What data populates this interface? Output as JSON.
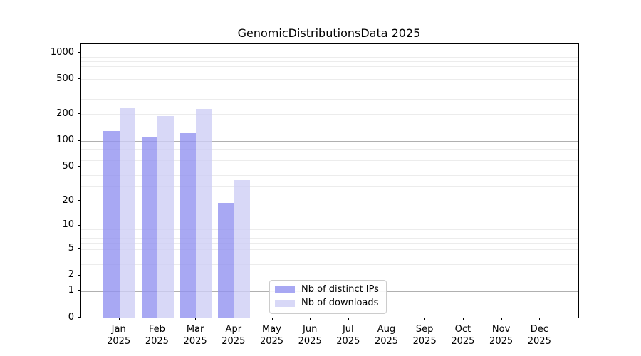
{
  "chart_data": {
    "type": "bar",
    "title": "GenomicDistributionsData 2025",
    "categories": [
      "Jan",
      "Feb",
      "Mar",
      "Apr",
      "May",
      "Jun",
      "Jul",
      "Aug",
      "Sep",
      "Oct",
      "Nov",
      "Dec"
    ],
    "year_label": "2025",
    "series": [
      {
        "name": "Nb of distinct IPs",
        "color_rgb": "146,146,240",
        "alpha": 0.8,
        "values": [
          129,
          110,
          121,
          19,
          null,
          null,
          null,
          null,
          null,
          null,
          null,
          null
        ]
      },
      {
        "name": "Nb of downloads",
        "color_rgb": "206,206,245",
        "alpha": 0.8,
        "values": [
          235,
          192,
          231,
          35,
          null,
          null,
          null,
          null,
          null,
          null,
          null,
          null
        ]
      }
    ],
    "yticks": [
      1000,
      500,
      200,
      100,
      50,
      20,
      10,
      5,
      2,
      1,
      0
    ],
    "yscale": "log1p",
    "ylim": [
      0,
      1250
    ],
    "grid": "horizontal",
    "legend_position": "lower center",
    "colors": {
      "major_grid": "#b0b0b0",
      "minor_grid": "#ececec",
      "spine": "#000000",
      "text": "#000000",
      "background": "#ffffff"
    }
  }
}
